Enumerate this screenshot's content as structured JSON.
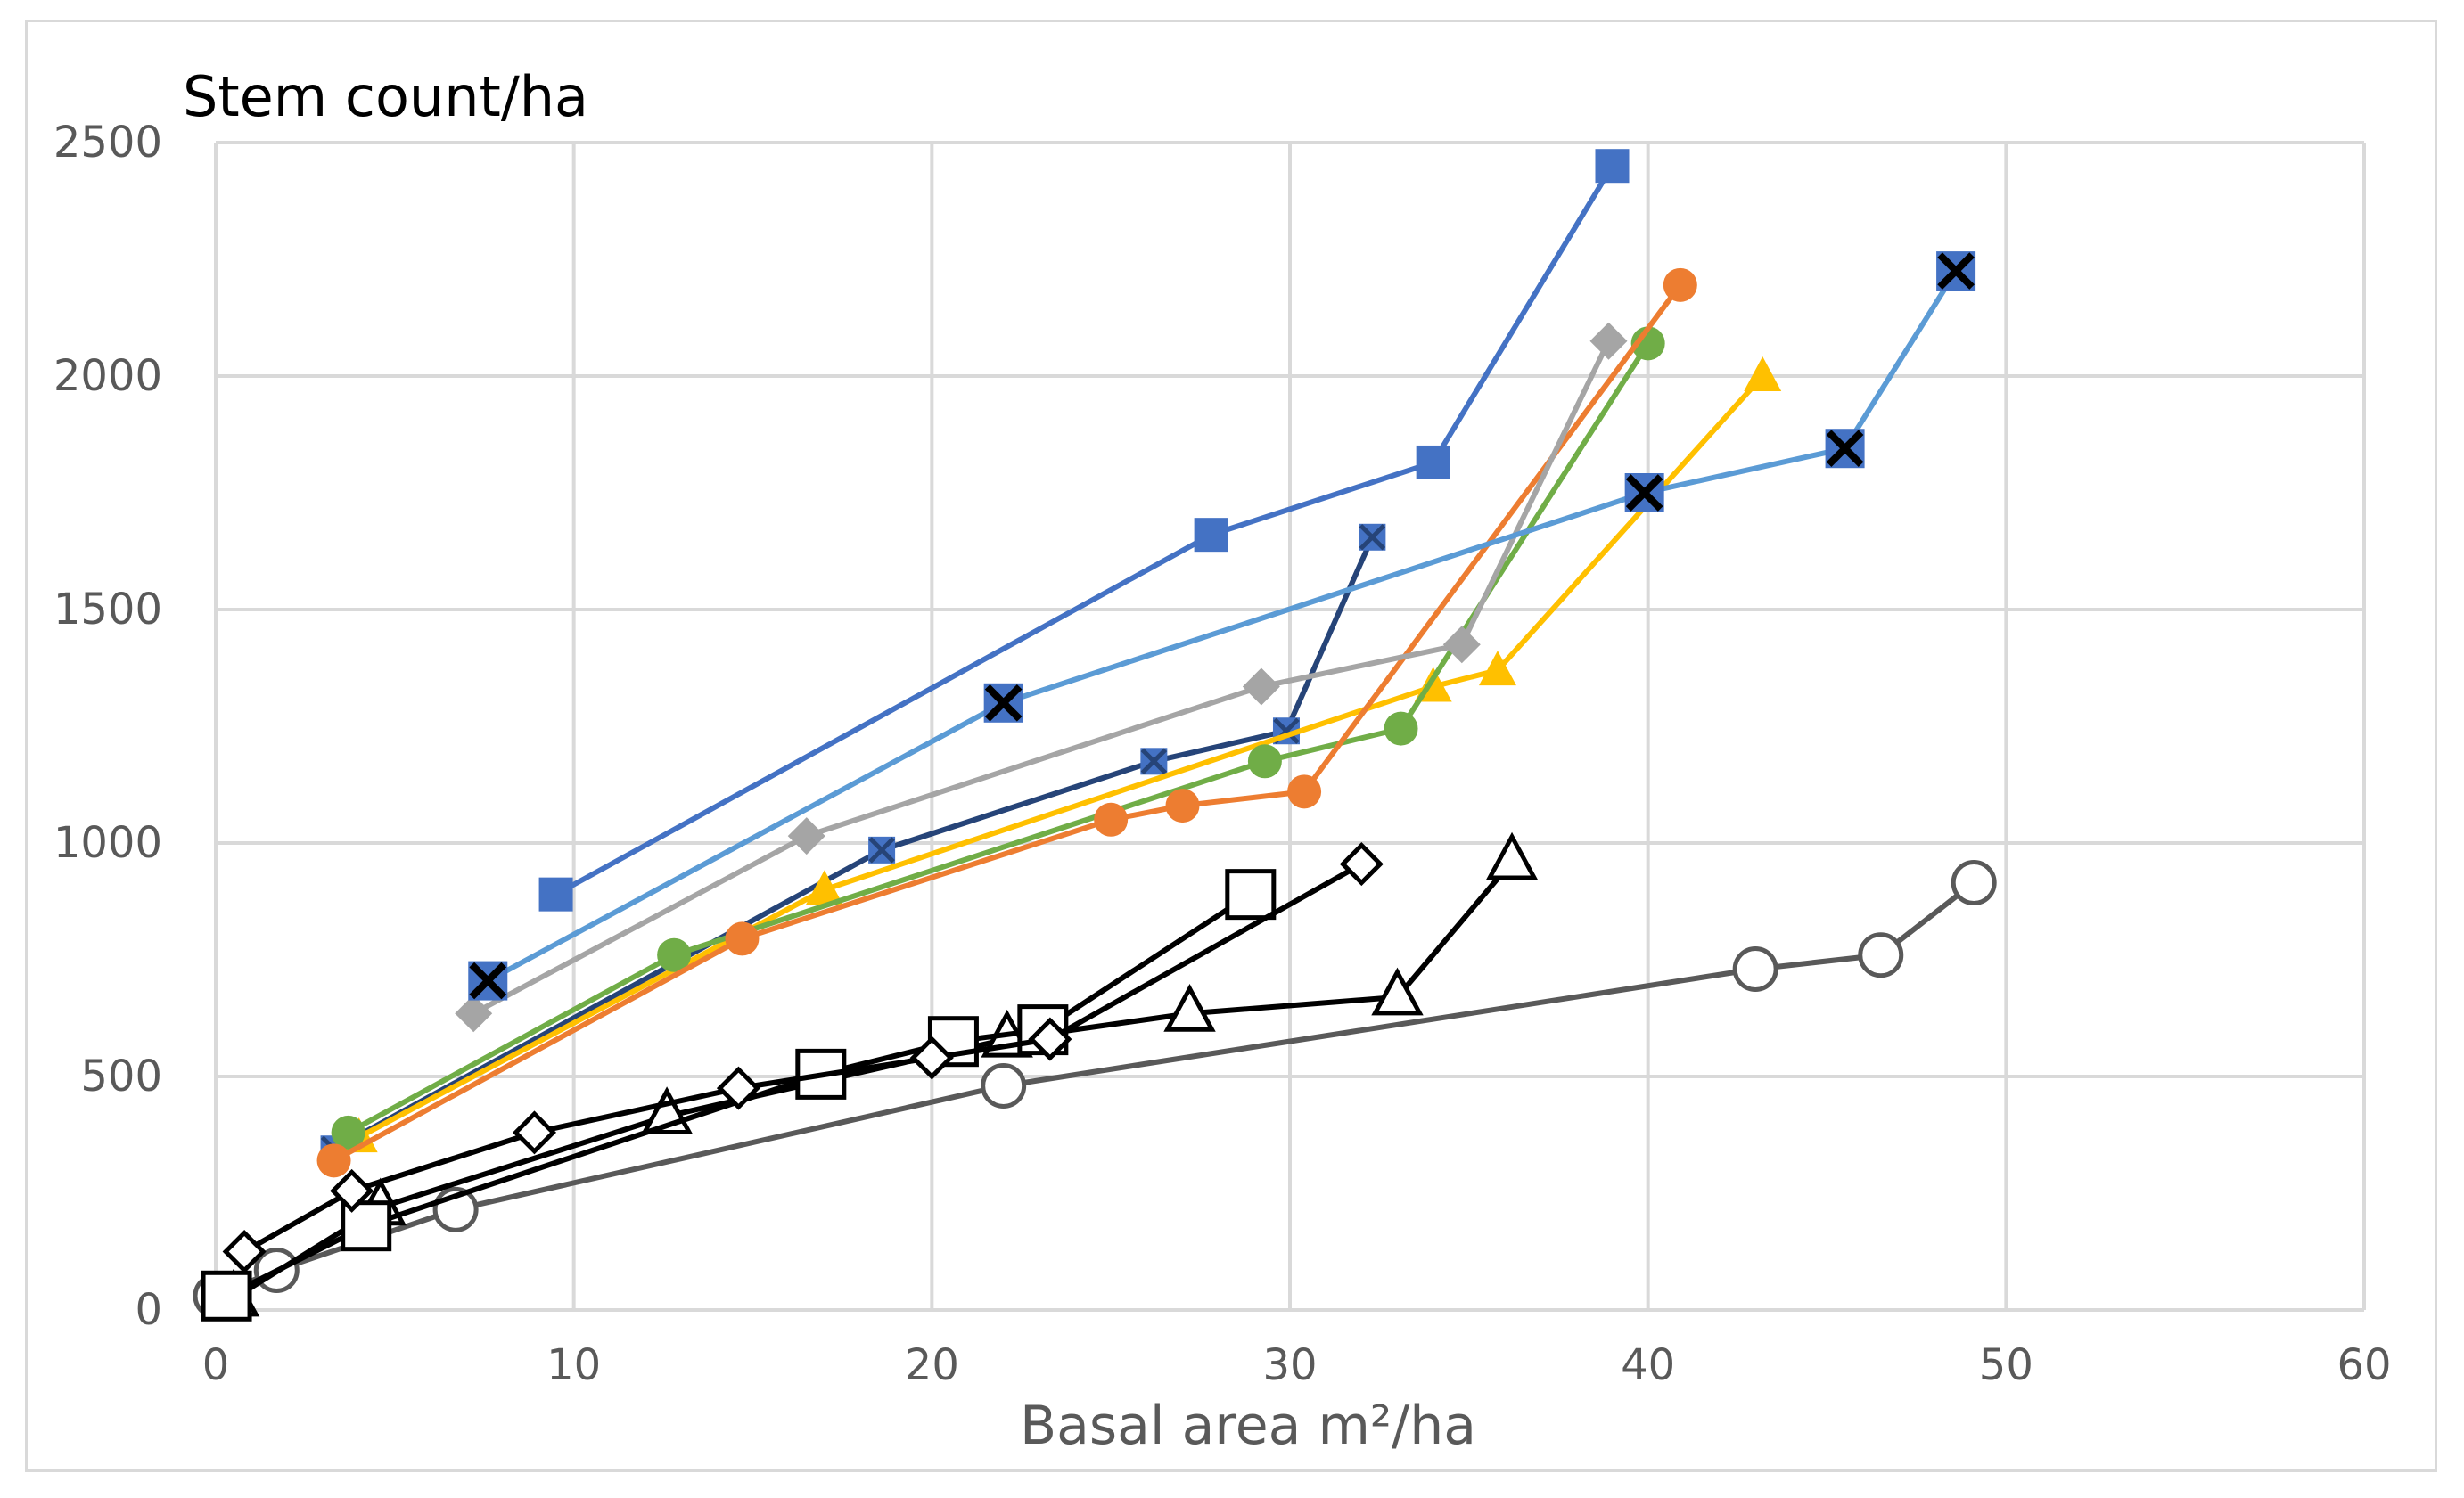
{
  "chart_data": {
    "type": "line",
    "title": "Stem count/ha",
    "xlabel": "Basal area m²/ha",
    "ylabel": "",
    "xlim": [
      0,
      60
    ],
    "ylim": [
      0,
      2500
    ],
    "xticks": [
      0,
      10,
      20,
      30,
      40,
      50,
      60
    ],
    "yticks": [
      0,
      500,
      1000,
      1500,
      2000,
      2500
    ],
    "grid": true,
    "legend": "none",
    "series": [
      {
        "name": "series-blue-square",
        "color": "#4472c4",
        "marker": "square-filled",
        "x": [
          9.5,
          27.8,
          34.0,
          39.0
        ],
        "y": [
          890,
          1660,
          1815,
          2450
        ]
      },
      {
        "name": "series-lightblue-x",
        "color": "#5b9bd5",
        "marker": "x-box",
        "x": [
          7.6,
          22.0,
          39.9,
          45.5,
          48.6
        ],
        "y": [
          705,
          1300,
          1750,
          1845,
          2225
        ]
      },
      {
        "name": "series-gray-diamond",
        "color": "#a5a5a5",
        "marker": "diamond-filled",
        "x": [
          7.2,
          16.5,
          29.2,
          34.8,
          38.9
        ],
        "y": [
          635,
          1015,
          1335,
          1425,
          2075
        ]
      },
      {
        "name": "series-orange-circle",
        "color": "#ed7d31",
        "marker": "circle-filled",
        "x": [
          3.3,
          14.7,
          25.0,
          27.0,
          30.4,
          40.9
        ],
        "y": [
          320,
          795,
          1050,
          1080,
          1110,
          2195
        ]
      },
      {
        "name": "series-green-circle",
        "color": "#70ad47",
        "marker": "circle-filled",
        "x": [
          3.7,
          12.8,
          29.3,
          33.1,
          40.0
        ],
        "y": [
          380,
          760,
          1175,
          1245,
          2070
        ]
      },
      {
        "name": "series-yellow-triangle",
        "color": "#ffc000",
        "marker": "triangle-filled",
        "x": [
          4.0,
          17.0,
          34.0,
          35.8,
          43.2
        ],
        "y": [
          370,
          900,
          1335,
          1370,
          2000
        ]
      },
      {
        "name": "series-navy-asterisk",
        "color": "#264478",
        "marker": "asterisk",
        "x": [
          3.3,
          18.6,
          26.2,
          29.9,
          32.3
        ],
        "y": [
          345,
          985,
          1175,
          1240,
          1655
        ]
      },
      {
        "name": "series-black-diamond",
        "color": "#000000",
        "marker": "diamond-open",
        "x": [
          0.8,
          3.8,
          8.9,
          14.6,
          20.0,
          23.3,
          32.0
        ],
        "y": [
          125,
          255,
          380,
          475,
          540,
          580,
          955
        ]
      },
      {
        "name": "series-black-square",
        "color": "#000000",
        "marker": "square-open",
        "x": [
          0.3,
          4.2,
          16.9,
          20.6,
          23.1,
          28.9
        ],
        "y": [
          30,
          180,
          505,
          575,
          600,
          890
        ]
      },
      {
        "name": "series-black-triangle",
        "color": "#000000",
        "marker": "triangle-open",
        "x": [
          0.5,
          4.6,
          12.6,
          22.1,
          27.2,
          33.0,
          36.2
        ],
        "y": [
          25,
          220,
          415,
          580,
          635,
          670,
          960
        ]
      },
      {
        "name": "series-gray-circle",
        "color": "#595959",
        "marker": "circle-open",
        "x": [
          0.0,
          1.7,
          6.7,
          22.0,
          43.0,
          46.5,
          49.1
        ],
        "y": [
          30,
          85,
          215,
          480,
          730,
          760,
          915
        ]
      }
    ]
  }
}
